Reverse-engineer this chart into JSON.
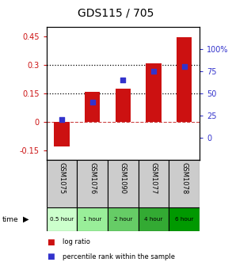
{
  "title": "GDS115 / 705",
  "samples": [
    "GSM1075",
    "GSM1076",
    "GSM1090",
    "GSM1077",
    "GSM1078"
  ],
  "time_labels": [
    "0.5 hour",
    "1 hour",
    "2 hour",
    "4 hour",
    "6 hour"
  ],
  "log_ratios": [
    -0.13,
    0.155,
    0.175,
    0.305,
    0.445
  ],
  "percentile_ranks_pct": [
    20,
    40,
    65,
    75,
    80
  ],
  "bar_color": "#cc1111",
  "dot_color": "#3333cc",
  "ylim_left": [
    -0.2,
    0.5
  ],
  "ylim_right": [
    -25,
    125
  ],
  "yticks_left": [
    -0.15,
    0,
    0.15,
    0.3,
    0.45
  ],
  "yticks_right": [
    0,
    25,
    50,
    75,
    100
  ],
  "hline_values": [
    0.15,
    0.3
  ],
  "background_color": "#ffffff",
  "title_fontsize": 10,
  "tick_fontsize": 7,
  "time_colors": [
    "#ccffcc",
    "#99ee99",
    "#66cc66",
    "#33aa33",
    "#009900"
  ],
  "sample_bg": "#cccccc"
}
